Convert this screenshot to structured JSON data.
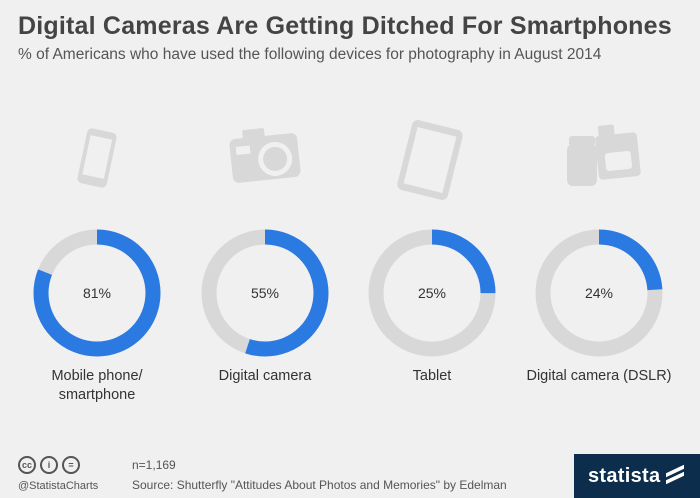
{
  "header": {
    "title": "Digital Cameras Are Getting Ditched For Smartphones",
    "subtitle": "% of Americans who have used the following devices for photography in August 2014"
  },
  "chart_data": {
    "type": "pie",
    "title": "Digital Cameras Are Getting Ditched For Smartphones",
    "subtitle": "% of Americans who have used the following devices for photography in August 2014",
    "categories": [
      "Mobile phone/ smartphone",
      "Digital camera",
      "Tablet",
      "Digital camera (DSLR)"
    ],
    "values": [
      81,
      55,
      25,
      24
    ],
    "value_labels": [
      "81%",
      "55%",
      "25%",
      "24%"
    ],
    "label_lines": [
      [
        "Mobile phone/",
        "smartphone"
      ],
      [
        "Digital camera"
      ],
      [
        "Tablet"
      ],
      [
        "Digital camera (DSLR)"
      ]
    ],
    "icons": [
      "smartphone-icon",
      "camera-icon",
      "tablet-icon",
      "dslr-camera-icon"
    ],
    "colors": {
      "fill": "#2a7ae2",
      "track": "#d8d8d8",
      "icon": "#d8d8d8"
    }
  },
  "footer": {
    "n": "n=1,169",
    "handle": "@StatistaCharts",
    "source": "Source: Shutterfly \"Attitudes About Photos and Memories\" by Edelman",
    "brand": "statista",
    "cc_icons": [
      "cc",
      "i",
      "="
    ]
  }
}
